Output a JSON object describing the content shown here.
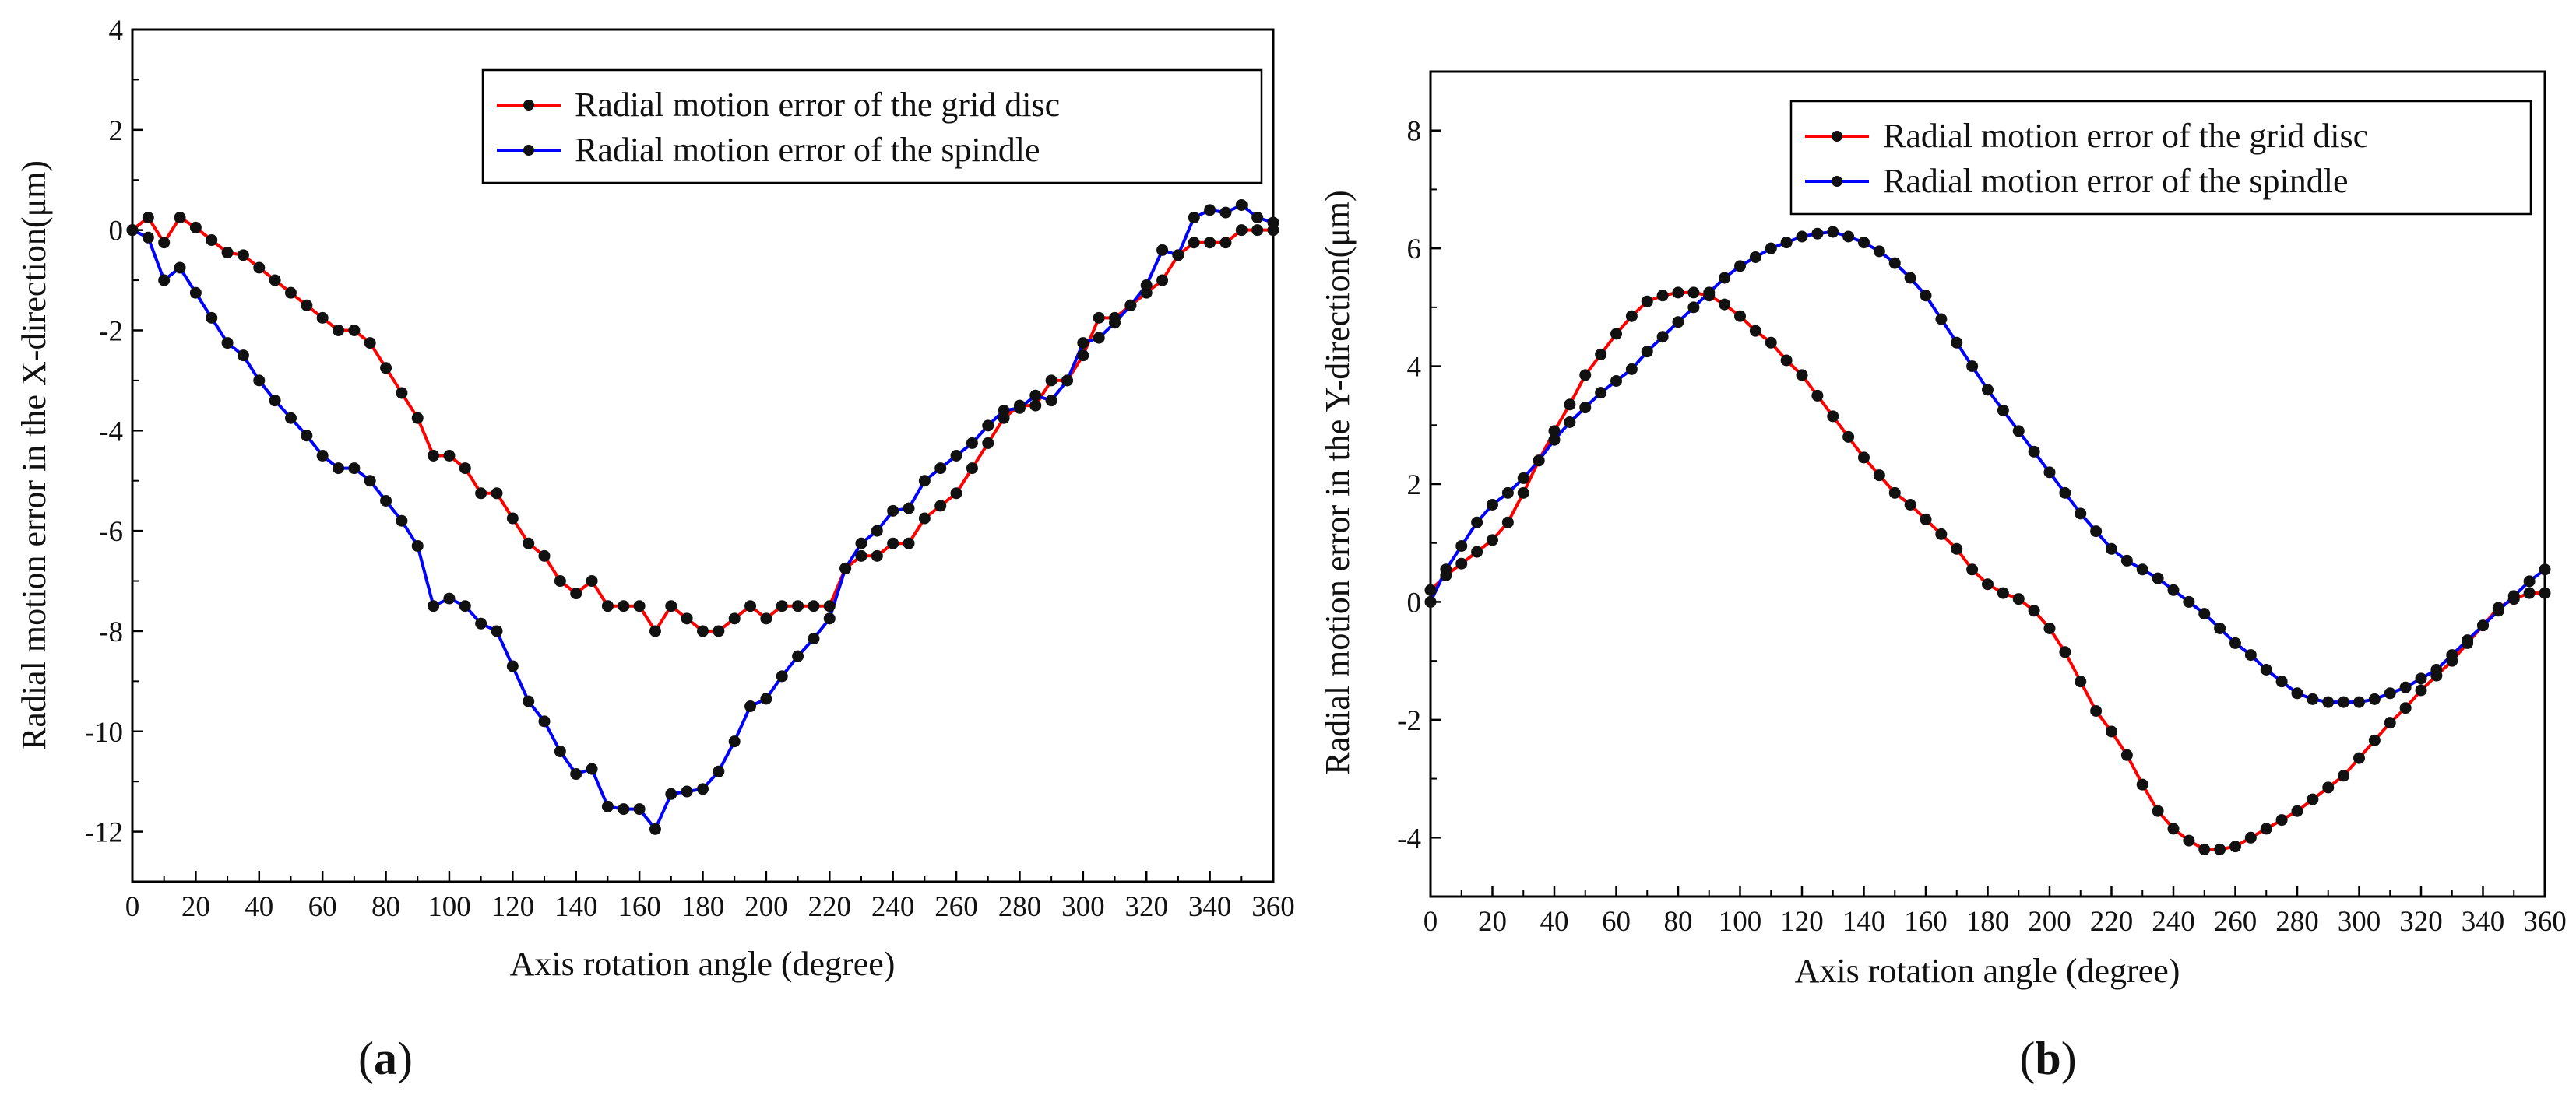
{
  "chart_data": [
    {
      "type": "line",
      "panel_label": "(a)",
      "panel_letter": "a",
      "xlabel": "Axis rotation angle (degree)",
      "ylabel": "Radial motion error in the X-direction(μm)",
      "xlim": [
        0,
        360
      ],
      "ylim": [
        -13,
        4
      ],
      "xticks": [
        0,
        20,
        40,
        60,
        80,
        100,
        120,
        140,
        160,
        180,
        200,
        220,
        240,
        260,
        280,
        300,
        320,
        340,
        360
      ],
      "yticks": [
        -12,
        -10,
        -8,
        -6,
        -4,
        -2,
        0,
        2,
        4
      ],
      "legend_position": "top-right",
      "series": [
        {
          "name": "Radial motion error of the grid disc",
          "color": "#ff0000",
          "x": [
            0,
            5,
            10,
            15,
            20,
            25,
            30,
            35,
            40,
            45,
            50,
            55,
            60,
            65,
            70,
            75,
            80,
            85,
            90,
            95,
            100,
            105,
            110,
            115,
            120,
            125,
            130,
            135,
            140,
            145,
            150,
            155,
            160,
            165,
            170,
            175,
            180,
            185,
            190,
            195,
            200,
            205,
            210,
            215,
            220,
            225,
            230,
            235,
            240,
            245,
            250,
            255,
            260,
            265,
            270,
            275,
            280,
            285,
            290,
            295,
            300,
            305,
            310,
            315,
            320,
            325,
            330,
            335,
            340,
            345,
            350,
            355,
            360
          ],
          "y": [
            0,
            0.25,
            -0.25,
            0.25,
            0.05,
            -0.2,
            -0.45,
            -0.5,
            -0.75,
            -1.0,
            -1.25,
            -1.5,
            -1.75,
            -2.0,
            -2.0,
            -2.25,
            -2.75,
            -3.25,
            -3.75,
            -4.5,
            -4.5,
            -4.75,
            -5.25,
            -5.25,
            -5.75,
            -6.25,
            -6.5,
            -7.0,
            -7.25,
            -7.0,
            -7.5,
            -7.5,
            -7.5,
            -8.0,
            -7.5,
            -7.75,
            -8.0,
            -8.0,
            -7.75,
            -7.5,
            -7.75,
            -7.5,
            -7.5,
            -7.5,
            -7.5,
            -6.75,
            -6.5,
            -6.5,
            -6.25,
            -6.25,
            -5.75,
            -5.5,
            -5.25,
            -4.75,
            -4.25,
            -3.75,
            -3.5,
            -3.5,
            -3.0,
            -3.0,
            -2.5,
            -1.75,
            -1.75,
            -1.5,
            -1.25,
            -1.0,
            -0.5,
            -0.25,
            -0.25,
            -0.25,
            0,
            0,
            0
          ]
        },
        {
          "name": "Radial motion error of the spindle",
          "color": "#0000ff",
          "x": [
            0,
            5,
            10,
            15,
            20,
            25,
            30,
            35,
            40,
            45,
            50,
            55,
            60,
            65,
            70,
            75,
            80,
            85,
            90,
            95,
            100,
            105,
            110,
            115,
            120,
            125,
            130,
            135,
            140,
            145,
            150,
            155,
            160,
            165,
            170,
            175,
            180,
            185,
            190,
            195,
            200,
            205,
            210,
            215,
            220,
            225,
            230,
            235,
            240,
            245,
            250,
            255,
            260,
            265,
            270,
            275,
            280,
            285,
            290,
            295,
            300,
            305,
            310,
            315,
            320,
            325,
            330,
            335,
            340,
            345,
            350,
            355,
            360
          ],
          "y": [
            0,
            -0.15,
            -1.0,
            -0.75,
            -1.25,
            -1.75,
            -2.25,
            -2.5,
            -3.0,
            -3.4,
            -3.75,
            -4.1,
            -4.5,
            -4.75,
            -4.75,
            -5.0,
            -5.4,
            -5.8,
            -6.3,
            -7.5,
            -7.35,
            -7.5,
            -7.85,
            -8.0,
            -8.7,
            -9.4,
            -9.8,
            -10.4,
            -10.85,
            -10.75,
            -11.5,
            -11.55,
            -11.55,
            -11.95,
            -11.25,
            -11.2,
            -11.15,
            -10.8,
            -10.2,
            -9.5,
            -9.35,
            -8.9,
            -8.5,
            -8.15,
            -7.75,
            -6.75,
            -6.25,
            -6.0,
            -5.6,
            -5.55,
            -5.0,
            -4.75,
            -4.5,
            -4.25,
            -3.9,
            -3.6,
            -3.55,
            -3.3,
            -3.4,
            -3.0,
            -2.25,
            -2.15,
            -1.85,
            -1.5,
            -1.1,
            -0.4,
            -0.5,
            0.25,
            0.4,
            0.35,
            0.5,
            0.25,
            0.15
          ]
        }
      ]
    },
    {
      "type": "line",
      "panel_label": "(b)",
      "panel_letter": "b",
      "xlabel": "Axis rotation angle (degree)",
      "ylabel": "Radial motion error in the Y-direction(μm)",
      "xlim": [
        0,
        360
      ],
      "ylim": [
        -5,
        9
      ],
      "xticks": [
        0,
        20,
        40,
        60,
        80,
        100,
        120,
        140,
        160,
        180,
        200,
        220,
        240,
        260,
        280,
        300,
        320,
        340,
        360
      ],
      "yticks": [
        -4,
        -2,
        0,
        2,
        4,
        6,
        8
      ],
      "legend_position": "top-right",
      "series": [
        {
          "name": "Radial motion error of the grid disc",
          "color": "#ff0000",
          "x": [
            0,
            5,
            10,
            15,
            20,
            25,
            30,
            35,
            40,
            45,
            50,
            55,
            60,
            65,
            70,
            75,
            80,
            85,
            90,
            95,
            100,
            105,
            110,
            115,
            120,
            125,
            130,
            135,
            140,
            145,
            150,
            155,
            160,
            165,
            170,
            175,
            180,
            185,
            190,
            195,
            200,
            205,
            210,
            215,
            220,
            225,
            230,
            235,
            240,
            245,
            250,
            255,
            260,
            265,
            270,
            275,
            280,
            285,
            290,
            295,
            300,
            305,
            310,
            315,
            320,
            325,
            330,
            335,
            340,
            345,
            350,
            355,
            360
          ],
          "y": [
            0.2,
            0.45,
            0.65,
            0.85,
            1.05,
            1.35,
            1.85,
            2.4,
            2.9,
            3.35,
            3.85,
            4.2,
            4.55,
            4.85,
            5.1,
            5.2,
            5.25,
            5.25,
            5.2,
            5.05,
            4.85,
            4.6,
            4.4,
            4.1,
            3.85,
            3.5,
            3.15,
            2.8,
            2.45,
            2.15,
            1.85,
            1.65,
            1.4,
            1.15,
            0.9,
            0.55,
            0.3,
            0.15,
            0.05,
            -0.15,
            -0.45,
            -0.85,
            -1.35,
            -1.85,
            -2.2,
            -2.6,
            -3.1,
            -3.55,
            -3.85,
            -4.05,
            -4.2,
            -4.2,
            -4.15,
            -4.0,
            -3.85,
            -3.7,
            -3.55,
            -3.35,
            -3.15,
            -2.95,
            -2.65,
            -2.35,
            -2.05,
            -1.8,
            -1.5,
            -1.25,
            -1.0,
            -0.7,
            -0.4,
            -0.1,
            0.05,
            0.15,
            0.15
          ]
        },
        {
          "name": "Radial motion error of the spindle",
          "color": "#0000ff",
          "x": [
            0,
            5,
            10,
            15,
            20,
            25,
            30,
            35,
            40,
            45,
            50,
            55,
            60,
            65,
            70,
            75,
            80,
            85,
            90,
            95,
            100,
            105,
            110,
            115,
            120,
            125,
            130,
            135,
            140,
            145,
            150,
            155,
            160,
            165,
            170,
            175,
            180,
            185,
            190,
            195,
            200,
            205,
            210,
            215,
            220,
            225,
            230,
            235,
            240,
            245,
            250,
            255,
            260,
            265,
            270,
            275,
            280,
            285,
            290,
            295,
            300,
            305,
            310,
            315,
            320,
            325,
            330,
            335,
            340,
            345,
            350,
            355,
            360
          ],
          "y": [
            0,
            0.55,
            0.95,
            1.35,
            1.65,
            1.85,
            2.1,
            2.4,
            2.75,
            3.05,
            3.3,
            3.55,
            3.75,
            3.95,
            4.25,
            4.5,
            4.75,
            5.0,
            5.25,
            5.5,
            5.7,
            5.85,
            6.0,
            6.1,
            6.2,
            6.25,
            6.28,
            6.2,
            6.1,
            5.95,
            5.75,
            5.5,
            5.2,
            4.8,
            4.4,
            4.0,
            3.6,
            3.25,
            2.9,
            2.55,
            2.2,
            1.85,
            1.5,
            1.2,
            0.9,
            0.7,
            0.55,
            0.4,
            0.2,
            0.0,
            -0.2,
            -0.45,
            -0.7,
            -0.9,
            -1.15,
            -1.35,
            -1.55,
            -1.65,
            -1.7,
            -1.7,
            -1.7,
            -1.65,
            -1.55,
            -1.45,
            -1.3,
            -1.15,
            -0.9,
            -0.65,
            -0.4,
            -0.15,
            0.1,
            0.35,
            0.55
          ]
        }
      ]
    }
  ]
}
